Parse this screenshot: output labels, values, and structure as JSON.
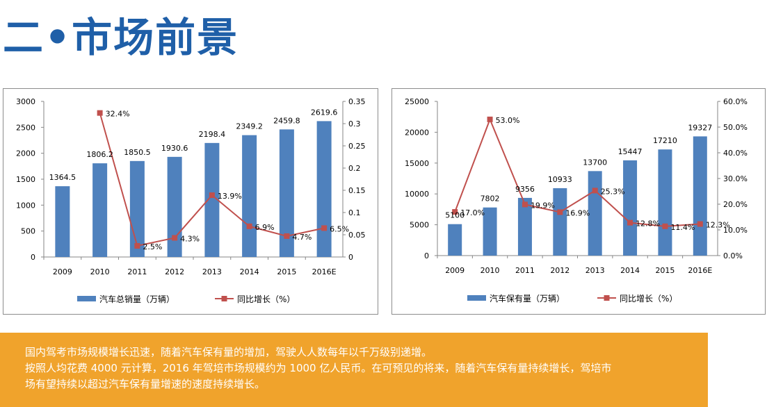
{
  "title": "二•市场前景",
  "colors": {
    "title": "#1f5fa8",
    "bar": "#4f81bd",
    "line": "#c0504d",
    "banner": "#f0a32c"
  },
  "chart_data": [
    {
      "type": "bar",
      "categories": [
        "2009",
        "2010",
        "2011",
        "2012",
        "2013",
        "2014",
        "2015",
        "2016E"
      ],
      "series": [
        {
          "name": "汽车总销量（万辆）",
          "type": "bar",
          "axis": "left",
          "values": [
            1364.5,
            1806.2,
            1850.5,
            1930.6,
            2198.4,
            2349.2,
            2459.8,
            2619.6
          ],
          "labels": [
            "1364.5",
            "1806.2",
            "1850.5",
            "1930.6",
            "2198.4",
            "2349.2",
            "2459.8",
            "2619.6"
          ]
        },
        {
          "name": "同比增长（%）",
          "type": "line",
          "axis": "right",
          "values": [
            null,
            0.324,
            0.025,
            0.043,
            0.139,
            0.069,
            0.047,
            0.065
          ],
          "labels": [
            "",
            "32.4%",
            "2.5%",
            "4.3%",
            "13.9%",
            "6.9%",
            "4.7%",
            "6.5%"
          ]
        }
      ],
      "y_left": {
        "min": 0,
        "max": 3000,
        "ticks": [
          "0",
          "500",
          "1000",
          "1500",
          "2000",
          "2500",
          "3000"
        ]
      },
      "y_right": {
        "min": 0,
        "max": 0.35,
        "ticks": [
          "0",
          "0.05",
          "0.1",
          "0.15",
          "0.2",
          "0.25",
          "0.3",
          "0.35"
        ]
      },
      "grid": false,
      "legend": "bottom"
    },
    {
      "type": "bar",
      "categories": [
        "2009",
        "2010",
        "2011",
        "2012",
        "2013",
        "2014",
        "2015",
        "2016E"
      ],
      "series": [
        {
          "name": "汽车保有量（万辆）",
          "type": "bar",
          "axis": "left",
          "values": [
            5100,
            7802,
            9356,
            10933,
            13700,
            15447,
            17210,
            19327
          ],
          "labels": [
            "5100",
            "7802",
            "9356",
            "10933",
            "13700",
            "15447",
            "17210",
            "19327"
          ]
        },
        {
          "name": "同比增长（%）",
          "type": "line",
          "axis": "right",
          "values": [
            0.17,
            0.53,
            0.199,
            0.169,
            0.253,
            0.128,
            0.114,
            0.123
          ],
          "labels": [
            "17.0%",
            "53.0%",
            "19.9%",
            "16.9%",
            "25.3%",
            "12.8%",
            "11.4%",
            "12.3%"
          ]
        }
      ],
      "y_left": {
        "min": 0,
        "max": 25000,
        "ticks": [
          "0",
          "5000",
          "10000",
          "15000",
          "20000",
          "25000"
        ]
      },
      "y_right": {
        "min": 0,
        "max": 0.6,
        "ticks": [
          "0.0%",
          "10.0%",
          "20.0%",
          "30.0%",
          "40.0%",
          "50.0%",
          "60.0%"
        ]
      },
      "grid": false,
      "legend": "bottom"
    }
  ],
  "banner": {
    "lines": [
      "国内驾考市场规模增长迅速，随着汽车保有量的增加，驾驶人人数每年以千万级别递增。",
      "按照人均花费 4000 元计算，2016 年驾培市场规模约为 1000 亿人民币。在可预见的将来，随着汽车保有量持续增长，驾培市",
      "场有望持续以超过汽车保有量增速的速度持续增长。"
    ]
  }
}
